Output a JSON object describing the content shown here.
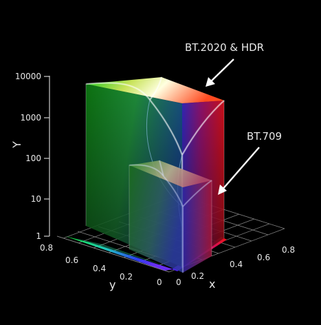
{
  "figure": {
    "annotations": {
      "large_volume": "BT.2020 & HDR",
      "small_volume": "BT.709"
    },
    "axes": {
      "vertical": {
        "label": "Y",
        "scale": "log",
        "ticks": [
          "1",
          "10",
          "100",
          "1000",
          "10000"
        ]
      },
      "left_floor": {
        "label": "y",
        "ticks": [
          "0.8",
          "0.6",
          "0.4",
          "0.2",
          "0"
        ]
      },
      "right_floor": {
        "label": "x",
        "ticks": [
          "0",
          "0.2",
          "0.4",
          "0.6",
          "0.8"
        ]
      }
    },
    "colors": {
      "background": "#000000",
      "text": "#e8e8e8",
      "grid": "#9a9a9a",
      "red": "#ff1010",
      "green": "#10ff20",
      "blue": "#2020ff",
      "white": "#ffffff"
    }
  }
}
